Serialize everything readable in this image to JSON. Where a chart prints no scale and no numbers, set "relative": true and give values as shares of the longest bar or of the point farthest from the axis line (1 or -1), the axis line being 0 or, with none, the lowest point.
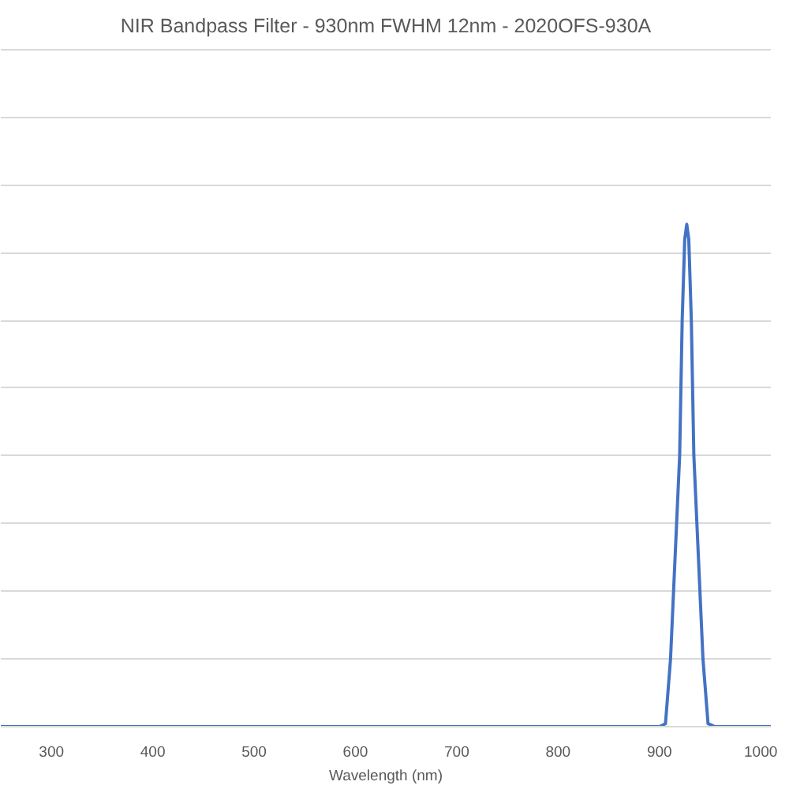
{
  "chart_data": {
    "type": "line",
    "title": "NIR Bandpass Filter - 930nm FWHM 12nm - 2020OFS-930A",
    "xlabel": "Wavelength (nm)",
    "x": [
      250,
      880,
      900,
      906,
      911,
      914,
      920,
      922.5,
      925,
      927,
      929,
      931.5,
      934,
      940,
      943,
      948,
      955,
      1010
    ],
    "series": [
      {
        "color": "#4472c4",
        "values": [
          0,
          0,
          0,
          0.006,
          0.135,
          0.27,
          0.54,
          0.81,
          0.97,
          1,
          0.97,
          0.81,
          0.54,
          0.27,
          0.135,
          0.006,
          0,
          0
        ]
      }
    ],
    "relative": true,
    "xlim": [
      250,
      1010
    ],
    "xticks": [
      300,
      400,
      500,
      600,
      700,
      800,
      900,
      1000
    ],
    "grid": "y",
    "marker": "none",
    "line_style": "solid",
    "tick_labels": "x"
  }
}
